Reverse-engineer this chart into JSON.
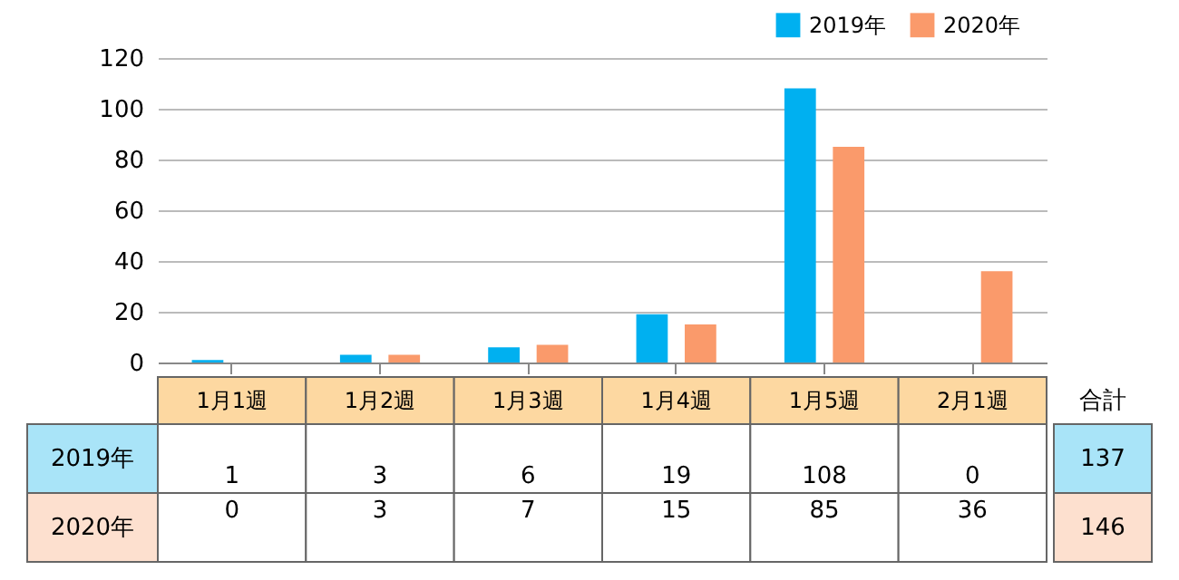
{
  "chart_data": {
    "type": "bar",
    "categories": [
      "1月1週",
      "1月2週",
      "1月3週",
      "1月4週",
      "1月5週",
      "2月1週"
    ],
    "series": [
      {
        "name": "2019年",
        "color": "#00b0f0",
        "values": [
          1,
          3,
          6,
          19,
          108,
          0
        ]
      },
      {
        "name": "2020年",
        "color": "#fa9a6b",
        "values": [
          0,
          3,
          7,
          15,
          85,
          36
        ]
      }
    ],
    "ylim": [
      0,
      120
    ],
    "yticks": [
      0,
      20,
      40,
      60,
      80,
      100,
      120
    ],
    "grid": "y",
    "legend": "top right",
    "data_labels": true,
    "annotations": [
      "合計",
      "137",
      "146"
    ]
  }
}
